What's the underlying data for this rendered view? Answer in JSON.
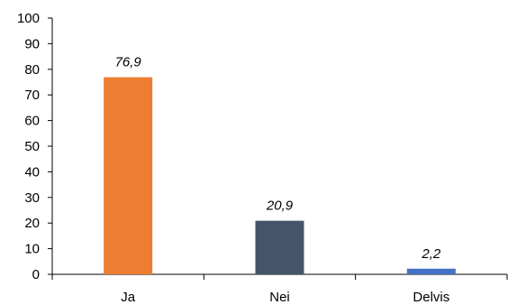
{
  "chart_data": {
    "type": "bar",
    "categories": [
      "Ja",
      "Nei",
      "Delvis"
    ],
    "values": [
      76.9,
      20.9,
      2.2
    ],
    "data_labels": [
      "76,9",
      "20,9",
      "2,2"
    ],
    "bar_colors": [
      "#ED7D31",
      "#44546A",
      "#4472C4"
    ],
    "ylim": [
      0,
      100
    ],
    "yticks": [
      0,
      10,
      20,
      30,
      40,
      50,
      60,
      70,
      80,
      90,
      100
    ],
    "title": "",
    "xlabel": "",
    "ylabel": "",
    "grid": false,
    "legend": "none"
  }
}
